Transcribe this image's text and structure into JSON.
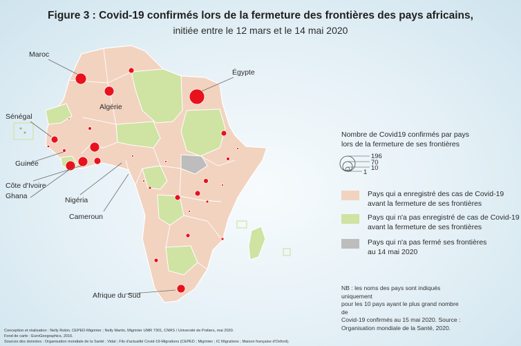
{
  "title": "Figure 3 : Covid-19 confirmés lors de la fermeture des frontières des pays africains,",
  "subtitle": "initiée entre le 12 mars et le 14 mai 2020",
  "country_labels": {
    "maroc": "Maroc",
    "algerie": "Algérie",
    "egypte": "Égypte",
    "senegal": "Sénégal",
    "guinee": "Guinée",
    "cote_ivoire": "Côte d'Ivoire",
    "ghana": "Ghana",
    "nigeria": "Nigéria",
    "cameroun": "Cameroun",
    "afrique_du_sud": "Afrique du Sud"
  },
  "size_legend": {
    "title_line1": "Nombre de Covid19 confirmés par pays",
    "title_line2": "lors de la fermeture de ses frontières",
    "values": [
      "196",
      "70",
      "10",
      "1"
    ]
  },
  "category_legend": [
    {
      "label_line1": "Pays qui a enregistré des cas de Covid-19",
      "label_line2": "avant la fermeture de ses frontières",
      "color": "#f2d3c0"
    },
    {
      "label_line1": "Pays qui n'a pas enregistré de cas de Covid-19",
      "label_line2": "avant la fermeture de ses frontières",
      "color": "#cfe3a3"
    },
    {
      "label_line1": "Pays qui n'a pas fermé ses frontières",
      "label_line2": "au 14 mai 2020",
      "color": "#bdbdbd"
    }
  ],
  "note": {
    "line1": "NB : les noms des pays sont indiqués uniquement",
    "line2": "pour les 10 pays ayant le plus grand nombre de",
    "line3": "Covid-19 confirmés au 15 mai 2020. Source :",
    "line4": "Organisation mondiale de la Santé, 2020."
  },
  "credits": {
    "line1": "Conception et réalisation : Nelly Robin, CEPED-Migrinter ; Nelly Martin, Migrinter UMR 7301, CNRS / Université de Poitiers, mai 2020.",
    "line2": "Fond de carte : EuroGeographics, 2016.",
    "line3": "Sources des données : Organisation mondiale de la Santé ; Vidal ; Fils d'actualité Covid-19-Migrations (CEPED ; Migrinter ; IC Migrations ; Maison française d'Oxford)."
  },
  "colors": {
    "cases_before": "#f2d3c0",
    "no_cases_before": "#cfe3a3",
    "not_closed": "#bdbdbd",
    "circle": "#e8121c",
    "border": "#ffffff"
  }
}
